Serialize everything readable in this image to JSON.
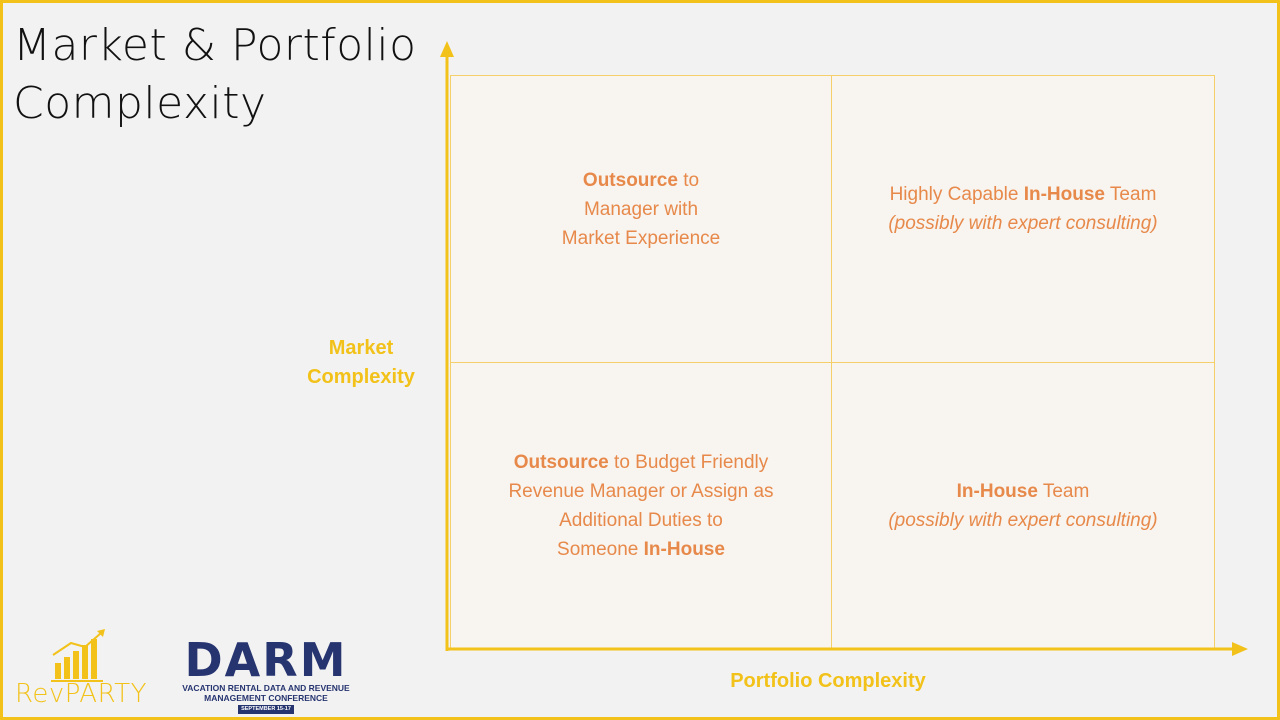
{
  "title": {
    "line1": "Market & Portfolio",
    "line2": "Complexity"
  },
  "axes": {
    "y_label_line1": "Market",
    "y_label_line2": "Complexity",
    "x_label": "Portfolio Complexity"
  },
  "quadrants": {
    "top_left": {
      "bold1": "Outsource",
      "after1": " to",
      "line2": "Manager with",
      "line3": "Market Experience"
    },
    "top_right": {
      "pre": "Highly Capable ",
      "bold": "In-House",
      "post": " Team",
      "italic": "(possibly with expert consulting)"
    },
    "bottom_left": {
      "bold1": "Outsource",
      "after1": " to Budget Friendly",
      "line2": "Revenue Manager or Assign as",
      "line3": "Additional Duties to",
      "line4_pre": "Someone ",
      "line4_bold": "In-House"
    },
    "bottom_right": {
      "bold": "In-House",
      "post": " Team",
      "italic": "(possibly with expert consulting)"
    }
  },
  "logos": {
    "revparty": "RevPARTY",
    "darm_word": "DARM",
    "darm_sub_line1": "VACATION RENTAL DATA AND REVENUE",
    "darm_sub_line2": "MANAGEMENT CONFERENCE",
    "darm_dates": "SEPTEMBER 15-17"
  },
  "colors": {
    "accent_yellow": "#f2c21a",
    "quadrant_text_orange": "#e7894a",
    "darm_navy": "#263470"
  }
}
